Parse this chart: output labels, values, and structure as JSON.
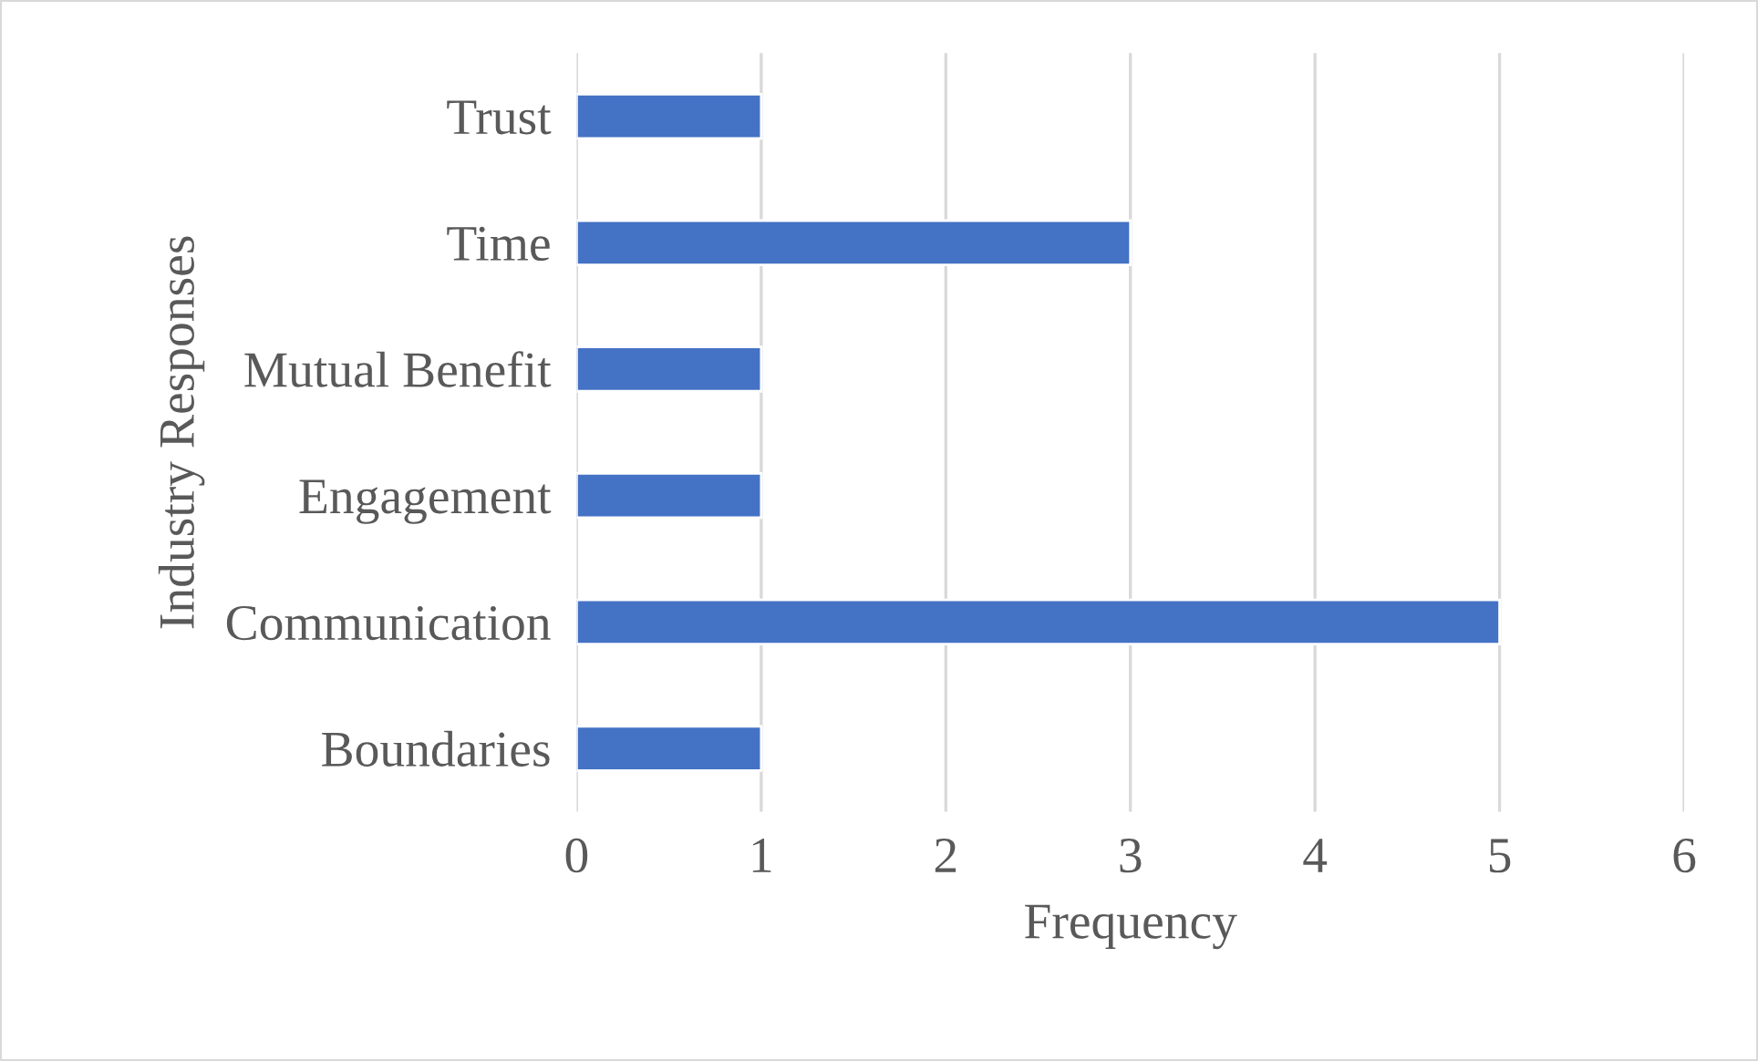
{
  "chart_data": {
    "type": "bar",
    "orientation": "horizontal",
    "xlabel": "Frequency",
    "ylabel": "Industry Responses",
    "categories": [
      "Trust",
      "Time",
      "Mutual Benefit",
      "Engagement",
      "Communication",
      "Boundaries"
    ],
    "values": [
      1,
      3,
      1,
      1,
      5,
      1
    ],
    "color": "#4472c4",
    "xlim": [
      0,
      6
    ],
    "xticks": [
      0,
      1,
      2,
      3,
      4,
      5,
      6
    ],
    "grid": "x",
    "legend": false
  }
}
